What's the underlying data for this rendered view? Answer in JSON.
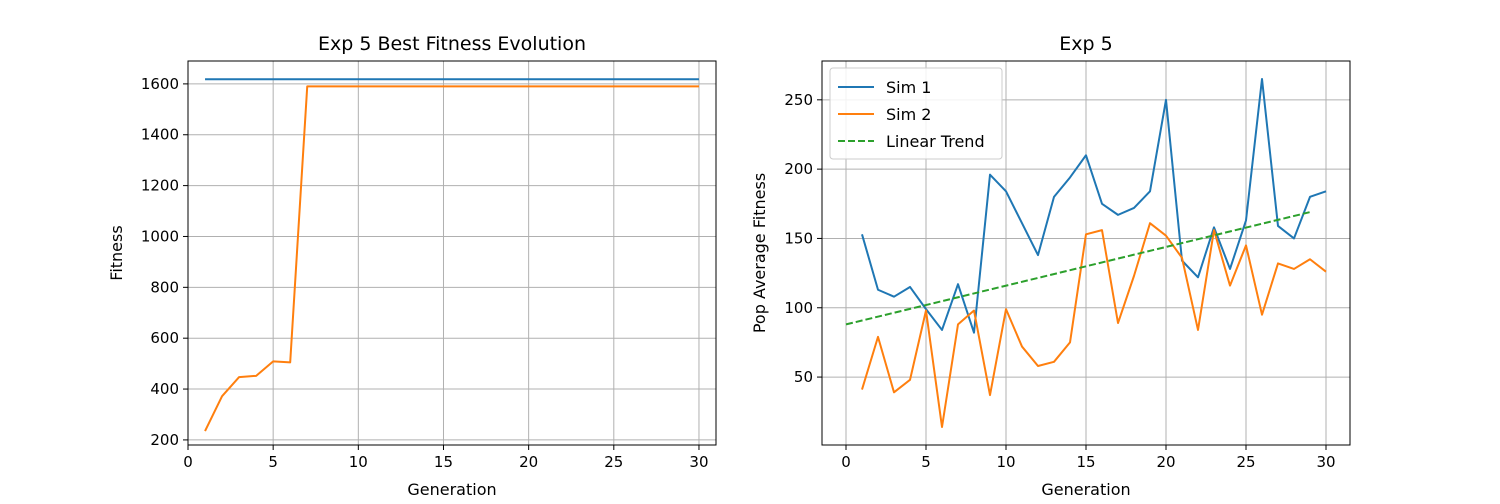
{
  "chart_data": [
    {
      "type": "line",
      "title": "Exp 5 Best Fitness Evolution",
      "xlabel": "Generation",
      "ylabel": "Fitness",
      "xlim": [
        0,
        31
      ],
      "ylim": [
        180,
        1690
      ],
      "xticks": [
        0,
        5,
        10,
        15,
        20,
        25,
        30
      ],
      "yticks": [
        200,
        400,
        600,
        800,
        1000,
        1200,
        1400,
        1600
      ],
      "grid": true,
      "legend": "none",
      "series": [
        {
          "color": "#1f77b4",
          "x": [
            1,
            2,
            3,
            4,
            5,
            6,
            7,
            8,
            9,
            10,
            11,
            12,
            13,
            14,
            15,
            16,
            17,
            18,
            19,
            20,
            21,
            22,
            23,
            24,
            25,
            26,
            27,
            28,
            29,
            30
          ],
          "y": [
            1618,
            1618,
            1618,
            1618,
            1618,
            1618,
            1618,
            1618,
            1618,
            1618,
            1618,
            1618,
            1618,
            1618,
            1618,
            1618,
            1618,
            1618,
            1618,
            1618,
            1618,
            1618,
            1618,
            1618,
            1618,
            1618,
            1618,
            1618,
            1618,
            1618
          ]
        },
        {
          "color": "#ff7f0e",
          "x": [
            1,
            2,
            3,
            4,
            5,
            6,
            7,
            8,
            9,
            10,
            11,
            12,
            13,
            14,
            15,
            16,
            17,
            18,
            19,
            20,
            21,
            22,
            23,
            24,
            25,
            26,
            27,
            28,
            29,
            30
          ],
          "y": [
            235,
            372,
            447,
            452,
            509,
            505,
            1590,
            1590,
            1590,
            1590,
            1590,
            1590,
            1590,
            1590,
            1590,
            1590,
            1590,
            1590,
            1590,
            1590,
            1590,
            1590,
            1590,
            1590,
            1590,
            1590,
            1590,
            1590,
            1590,
            1590
          ]
        }
      ]
    },
    {
      "type": "line",
      "title": "Exp 5",
      "xlabel": "Generation",
      "ylabel": "Pop Average Fitness",
      "xlim": [
        -1.5,
        31.5
      ],
      "ylim": [
        1,
        278
      ],
      "xticks": [
        0,
        5,
        10,
        15,
        20,
        25,
        30
      ],
      "yticks": [
        50,
        100,
        150,
        200,
        250
      ],
      "grid": true,
      "legend": "upper-left",
      "series": [
        {
          "name": "Sim 1",
          "color": "#1f77b4",
          "style": "solid",
          "x": [
            1,
            2,
            3,
            4,
            5,
            6,
            7,
            8,
            9,
            10,
            11,
            12,
            13,
            14,
            15,
            16,
            17,
            18,
            19,
            20,
            21,
            22,
            23,
            24,
            25,
            26,
            27,
            28,
            29,
            30
          ],
          "y": [
            153,
            113,
            108,
            115,
            99,
            84,
            117,
            82,
            196,
            184,
            161,
            138,
            180,
            194,
            210,
            175,
            167,
            172,
            184,
            250,
            134,
            122,
            158,
            128,
            163,
            265,
            159,
            150,
            180,
            184
          ]
        },
        {
          "name": "Sim 2",
          "color": "#ff7f0e",
          "style": "solid",
          "x": [
            1,
            2,
            3,
            4,
            5,
            6,
            7,
            8,
            9,
            10,
            11,
            12,
            13,
            14,
            15,
            16,
            17,
            18,
            19,
            20,
            21,
            22,
            23,
            24,
            25,
            26,
            27,
            28,
            29,
            30
          ],
          "y": [
            41,
            79,
            39,
            48,
            98,
            14,
            88,
            98,
            37,
            99,
            72,
            58,
            61,
            75,
            153,
            156,
            89,
            123,
            161,
            152,
            136,
            84,
            156,
            116,
            145,
            95,
            132,
            128,
            135,
            126
          ]
        },
        {
          "name": "Linear Trend",
          "color": "#2ca02c",
          "style": "dashed",
          "x": [
            0,
            29
          ],
          "y": [
            88,
            169
          ]
        }
      ]
    }
  ]
}
